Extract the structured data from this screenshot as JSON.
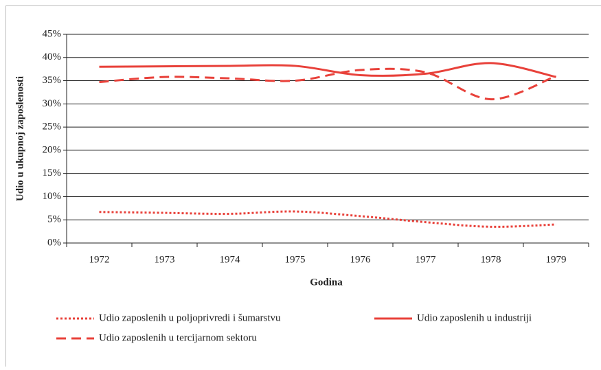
{
  "chart_data": {
    "type": "line",
    "x_label": "Godina",
    "y_label": "Udio u ukupnoj zaposlenosti",
    "categories": [
      "1972",
      "1973",
      "1974",
      "1975",
      "1976",
      "1977",
      "1978",
      "1979"
    ],
    "series": [
      {
        "name": "Udio zaposlenih u poljoprivredi i šumarstvu",
        "color": "#e8413a",
        "dash": "dotted",
        "values": [
          6.7,
          6.5,
          6.3,
          6.8,
          5.8,
          4.5,
          3.5,
          4.0
        ]
      },
      {
        "name": "Udio zaposlenih u industriji",
        "color": "#e8413a",
        "dash": "solid",
        "values": [
          38.0,
          38.1,
          38.2,
          38.2,
          36.2,
          36.5,
          38.8,
          35.8
        ]
      },
      {
        "name": "Udio zaposlenih u tercijarnom sektoru",
        "color": "#e8413a",
        "dash": "dashed",
        "values": [
          34.7,
          35.8,
          35.5,
          35.0,
          37.3,
          36.8,
          31.0,
          36.0
        ]
      }
    ],
    "ylim": [
      0,
      45
    ],
    "yticks": [
      {
        "value": 0,
        "label": "0%"
      },
      {
        "value": 5,
        "label": "5%"
      },
      {
        "value": 10,
        "label": "10%"
      },
      {
        "value": 15,
        "label": "15%"
      },
      {
        "value": 20,
        "label": "20%"
      },
      {
        "value": 25,
        "label": "25%"
      },
      {
        "value": 30,
        "label": "30%"
      },
      {
        "value": 35,
        "label": "35%"
      },
      {
        "value": 40,
        "label": "40%"
      },
      {
        "value": 45,
        "label": "45%"
      }
    ],
    "grid": true
  }
}
